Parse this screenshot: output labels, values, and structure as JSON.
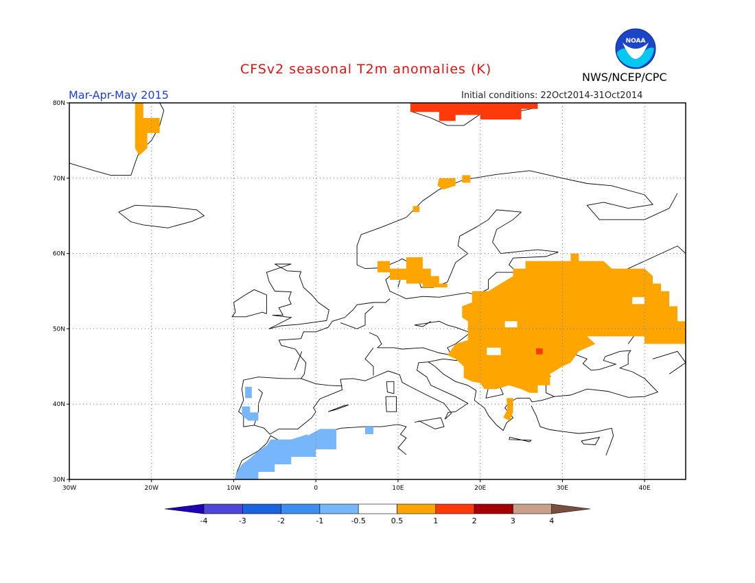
{
  "header": {
    "title": "CFSv2 seasonal T2m anomalies (K)",
    "season": "Mar-Apr-May 2015",
    "initial_conditions": "Initial conditions: 22Oct2014-31Oct2014",
    "org": "NWS/NCEP/CPC",
    "logo_text": "NOAA"
  },
  "map": {
    "lon_range": [
      -30,
      45
    ],
    "lat_range": [
      30,
      80
    ],
    "x_ticks": [
      {
        "value": -30,
        "label": "30W"
      },
      {
        "value": -20,
        "label": "20W"
      },
      {
        "value": -10,
        "label": "10W"
      },
      {
        "value": 0,
        "label": "0"
      },
      {
        "value": 10,
        "label": "10E"
      },
      {
        "value": 20,
        "label": "20E"
      },
      {
        "value": 30,
        "label": "30E"
      },
      {
        "value": 40,
        "label": "40E"
      }
    ],
    "y_ticks": [
      {
        "value": 30,
        "label": "30N"
      },
      {
        "value": 40,
        "label": "40N"
      },
      {
        "value": 50,
        "label": "50N"
      },
      {
        "value": 60,
        "label": "60N"
      },
      {
        "value": 70,
        "label": "70N"
      },
      {
        "value": 80,
        "label": "80N"
      }
    ],
    "grid": true
  },
  "anomaly_regions": [
    {
      "name": "greenland-warm",
      "level": "0.5 to 1",
      "color": "#ffa500",
      "points": [
        [
          -21.8,
          80
        ],
        [
          -21,
          80
        ],
        [
          -21,
          78
        ],
        [
          -19,
          78
        ],
        [
          -19,
          76
        ],
        [
          -20.5,
          76
        ],
        [
          -20.5,
          74
        ],
        [
          -21.5,
          73
        ],
        [
          -22,
          74
        ],
        [
          -22,
          80
        ]
      ]
    },
    {
      "name": "svalbard-warm",
      "level": "1 to 2",
      "color": "#ff3a0a",
      "points": [
        [
          11.5,
          80
        ],
        [
          27,
          80
        ],
        [
          27,
          79.2
        ],
        [
          25,
          79.2
        ],
        [
          25,
          77.8
        ],
        [
          20,
          77.8
        ],
        [
          20,
          78.4
        ],
        [
          17,
          78.4
        ],
        [
          17,
          77.6
        ],
        [
          15,
          77.6
        ],
        [
          15,
          78.8
        ],
        [
          11.5,
          78.8
        ]
      ]
    },
    {
      "name": "norway-north-warm",
      "level": "0.5 to 1",
      "color": "#ffa500",
      "points": [
        [
          15,
          70
        ],
        [
          17,
          70
        ],
        [
          17,
          69
        ],
        [
          15.5,
          68.5
        ],
        [
          14.8,
          69
        ]
      ]
    },
    {
      "name": "norway-north2-warm",
      "level": "0.5 to 1",
      "color": "#ffa500",
      "points": [
        [
          17.8,
          70.4
        ],
        [
          18.8,
          70.4
        ],
        [
          18.8,
          69.4
        ],
        [
          17.8,
          69.4
        ]
      ]
    },
    {
      "name": "norway-coast-warm",
      "level": "0.5 to 1",
      "color": "#ffa500",
      "points": [
        [
          11.8,
          66.3
        ],
        [
          12.6,
          66.3
        ],
        [
          12.6,
          65.5
        ],
        [
          11.8,
          65.5
        ]
      ]
    },
    {
      "name": "scandinavia-south-warm",
      "level": "0.5 to 1",
      "color": "#ffa500",
      "points": [
        [
          7.5,
          59
        ],
        [
          9,
          59
        ],
        [
          9,
          58
        ],
        [
          11,
          58
        ],
        [
          11,
          59.5
        ],
        [
          13,
          59.5
        ],
        [
          13,
          58
        ],
        [
          14,
          58
        ],
        [
          14,
          57
        ],
        [
          15,
          57
        ],
        [
          15,
          56
        ],
        [
          16,
          56
        ],
        [
          16,
          55.5
        ],
        [
          13,
          55.5
        ],
        [
          13,
          56
        ],
        [
          11,
          56
        ],
        [
          11,
          56.5
        ],
        [
          9,
          56.5
        ],
        [
          9,
          57.5
        ],
        [
          7.5,
          57.5
        ]
      ]
    },
    {
      "name": "eastern-europe-warm",
      "level": "0.5 to 1",
      "color": "#ffa500",
      "points": [
        [
          19,
          55
        ],
        [
          21,
          55
        ],
        [
          22.5,
          56
        ],
        [
          24,
          57
        ],
        [
          24,
          58
        ],
        [
          25.5,
          58
        ],
        [
          25.5,
          59
        ],
        [
          31,
          59
        ],
        [
          31,
          60
        ],
        [
          32,
          60
        ],
        [
          32,
          59
        ],
        [
          35,
          59
        ],
        [
          36,
          58
        ],
        [
          40,
          58
        ],
        [
          41,
          57
        ],
        [
          41,
          56
        ],
        [
          42,
          56
        ],
        [
          42,
          55
        ],
        [
          43,
          55
        ],
        [
          43,
          53
        ],
        [
          44,
          53
        ],
        [
          44,
          51
        ],
        [
          45,
          51
        ],
        [
          45,
          48
        ],
        [
          40,
          48
        ],
        [
          40,
          49
        ],
        [
          33,
          49
        ],
        [
          34,
          48
        ],
        [
          32,
          47
        ],
        [
          31,
          45.5
        ],
        [
          30,
          45
        ],
        [
          28.5,
          44
        ],
        [
          28.5,
          42.5
        ],
        [
          27,
          42.5
        ],
        [
          27,
          41.5
        ],
        [
          26,
          41.5
        ],
        [
          25,
          42
        ],
        [
          23.5,
          42.5
        ],
        [
          22,
          42
        ],
        [
          20.5,
          42
        ],
        [
          20,
          42.8
        ],
        [
          19,
          43
        ],
        [
          18,
          43.5
        ],
        [
          18,
          45
        ],
        [
          17,
          46
        ],
        [
          16,
          46.5
        ],
        [
          17,
          48
        ],
        [
          18.5,
          48.5
        ],
        [
          18.5,
          51
        ],
        [
          17.8,
          51.5
        ],
        [
          17.8,
          53
        ],
        [
          19,
          53.5
        ]
      ]
    },
    {
      "name": "greece-warm",
      "level": "0.5 to 1",
      "color": "#ffa500",
      "points": [
        [
          23.2,
          40.8
        ],
        [
          24,
          40.8
        ],
        [
          24,
          39
        ],
        [
          23.6,
          37.8
        ],
        [
          22.8,
          38.2
        ],
        [
          23.3,
          39.3
        ]
      ]
    },
    {
      "name": "romania-hot",
      "level": "1 to 2",
      "color": "#ff3a0a",
      "points": [
        [
          26.8,
          47.4
        ],
        [
          27.6,
          47.4
        ],
        [
          27.6,
          46.6
        ],
        [
          26.8,
          46.6
        ]
      ]
    },
    {
      "name": "portugal-cold",
      "level": "-1 to -0.5",
      "color": "#77b6fa",
      "points": [
        [
          -8.6,
          42.3
        ],
        [
          -7.8,
          42.3
        ],
        [
          -7.8,
          40.8
        ],
        [
          -8.6,
          40.8
        ]
      ]
    },
    {
      "name": "portugal-south-cold",
      "level": "-1 to -0.5",
      "color": "#77b6fa",
      "points": [
        [
          -9,
          39.7
        ],
        [
          -8,
          39.7
        ],
        [
          -8,
          38.9
        ],
        [
          -7,
          38.9
        ],
        [
          -7,
          37.8
        ],
        [
          -8.2,
          37.8
        ],
        [
          -9,
          38.5
        ]
      ]
    },
    {
      "name": "morocco-algeria-cold",
      "level": "-1 to -0.5",
      "color": "#77b6fa",
      "points": [
        [
          -9.8,
          30
        ],
        [
          -7,
          30
        ],
        [
          -7,
          31
        ],
        [
          -5,
          31
        ],
        [
          -5,
          32
        ],
        [
          -3,
          32
        ],
        [
          -3,
          33
        ],
        [
          0,
          33
        ],
        [
          0,
          34
        ],
        [
          2.5,
          34
        ],
        [
          2.5,
          36.7
        ],
        [
          0.5,
          36.7
        ],
        [
          -1,
          35.8
        ],
        [
          -1,
          36
        ],
        [
          -3,
          35.3
        ],
        [
          -5.5,
          35.3
        ],
        [
          -6,
          34.5
        ],
        [
          -7,
          33.8
        ],
        [
          -8,
          32.8
        ],
        [
          -9,
          32
        ],
        [
          -9.6,
          31
        ],
        [
          -9.8,
          30.3
        ]
      ]
    },
    {
      "name": "tunisia-cold",
      "level": "-1 to -0.5",
      "color": "#77b6fa",
      "points": [
        [
          6,
          37
        ],
        [
          7,
          37
        ],
        [
          7,
          36
        ],
        [
          6,
          36
        ]
      ]
    }
  ],
  "colorbar": {
    "labels": [
      "-4",
      "-3",
      "-2",
      "-1",
      "-0.5",
      "0.5",
      "1",
      "2",
      "3",
      "4"
    ],
    "colors": [
      "#1e00b8",
      "#4e46d8",
      "#1a64e0",
      "#3d8ef2",
      "#77b6fa",
      "#ffffff",
      "#ffa500",
      "#ff3a0a",
      "#a50008",
      "#c8a08c",
      "#7a4e40"
    ]
  }
}
